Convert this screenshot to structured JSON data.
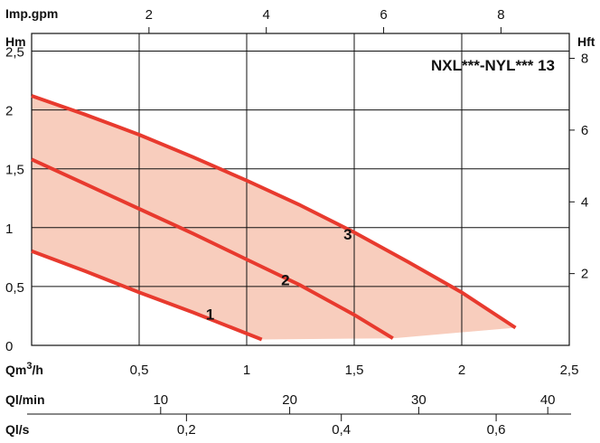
{
  "chart_data": {
    "type": "line",
    "title": "NXL***-NYL*** 13",
    "colors": {
      "curve": "#e83a2e",
      "fill": "#f8cdbd",
      "grid": "#111111",
      "text": "#111111"
    },
    "grid": true,
    "axes": {
      "x_primary": {
        "label": "Qm",
        "label_sup": "3",
        "label_suffix": "/h",
        "range": [
          0,
          2.5
        ],
        "ticks": [
          0.5,
          1,
          1.5,
          2,
          2.5
        ],
        "tick_labels": [
          "0,5",
          "1",
          "1,5",
          "2",
          "2,5"
        ]
      },
      "x_top": {
        "label": "Imp.gpm",
        "ticks": [
          2,
          4,
          6,
          8
        ],
        "tick_labels": [
          "2",
          "4",
          "6",
          "8"
        ]
      },
      "x_lmin": {
        "label": "Ql/min",
        "ticks": [
          10,
          20,
          30,
          40
        ],
        "tick_labels": [
          "10",
          "20",
          "30",
          "40"
        ]
      },
      "x_ls": {
        "label": "Ql/s",
        "ticks": [
          0.2,
          0.4,
          0.6
        ],
        "tick_labels": [
          "0,2",
          "0,4",
          "0,6"
        ]
      },
      "y_left": {
        "label": "Hm",
        "range": [
          0,
          2.65
        ],
        "ticks": [
          0,
          0.5,
          1,
          1.5,
          2,
          2.5
        ],
        "tick_labels": [
          "0",
          "0,5",
          "1",
          "1,5",
          "2",
          "2,5"
        ]
      },
      "y_right": {
        "label": "Hft",
        "ticks": [
          2,
          4,
          6,
          8
        ],
        "tick_labels": [
          "2",
          "4",
          "6",
          "8"
        ]
      }
    },
    "series": [
      {
        "label": "1",
        "label_at": [
          0.83,
          0.22
        ],
        "x": [
          0,
          0.25,
          0.5,
          0.75,
          1.07
        ],
        "y": [
          0.8,
          0.63,
          0.45,
          0.28,
          0.05
        ]
      },
      {
        "label": "2",
        "label_at": [
          1.18,
          0.51
        ],
        "x": [
          0,
          0.25,
          0.5,
          0.75,
          1,
          1.25,
          1.5,
          1.68
        ],
        "y": [
          1.58,
          1.37,
          1.16,
          0.95,
          0.73,
          0.51,
          0.26,
          0.06
        ]
      },
      {
        "label": "3",
        "label_at": [
          1.47,
          0.9
        ],
        "x": [
          0,
          0.25,
          0.5,
          0.75,
          1,
          1.25,
          1.5,
          1.75,
          2,
          2.25
        ],
        "y": [
          2.12,
          1.96,
          1.79,
          1.6,
          1.4,
          1.19,
          0.96,
          0.71,
          0.45,
          0.15
        ]
      }
    ],
    "operating_area": {
      "x": [
        0,
        0.25,
        0.5,
        0.75,
        1,
        1.25,
        1.5,
        1.75,
        2,
        2.25,
        1.68,
        1.07
      ],
      "y": [
        2.12,
        1.96,
        1.79,
        1.6,
        1.4,
        1.19,
        0.96,
        0.71,
        0.45,
        0.15,
        0.06,
        0.05
      ],
      "close_to": [
        [
          0,
          0.8
        ]
      ]
    }
  }
}
